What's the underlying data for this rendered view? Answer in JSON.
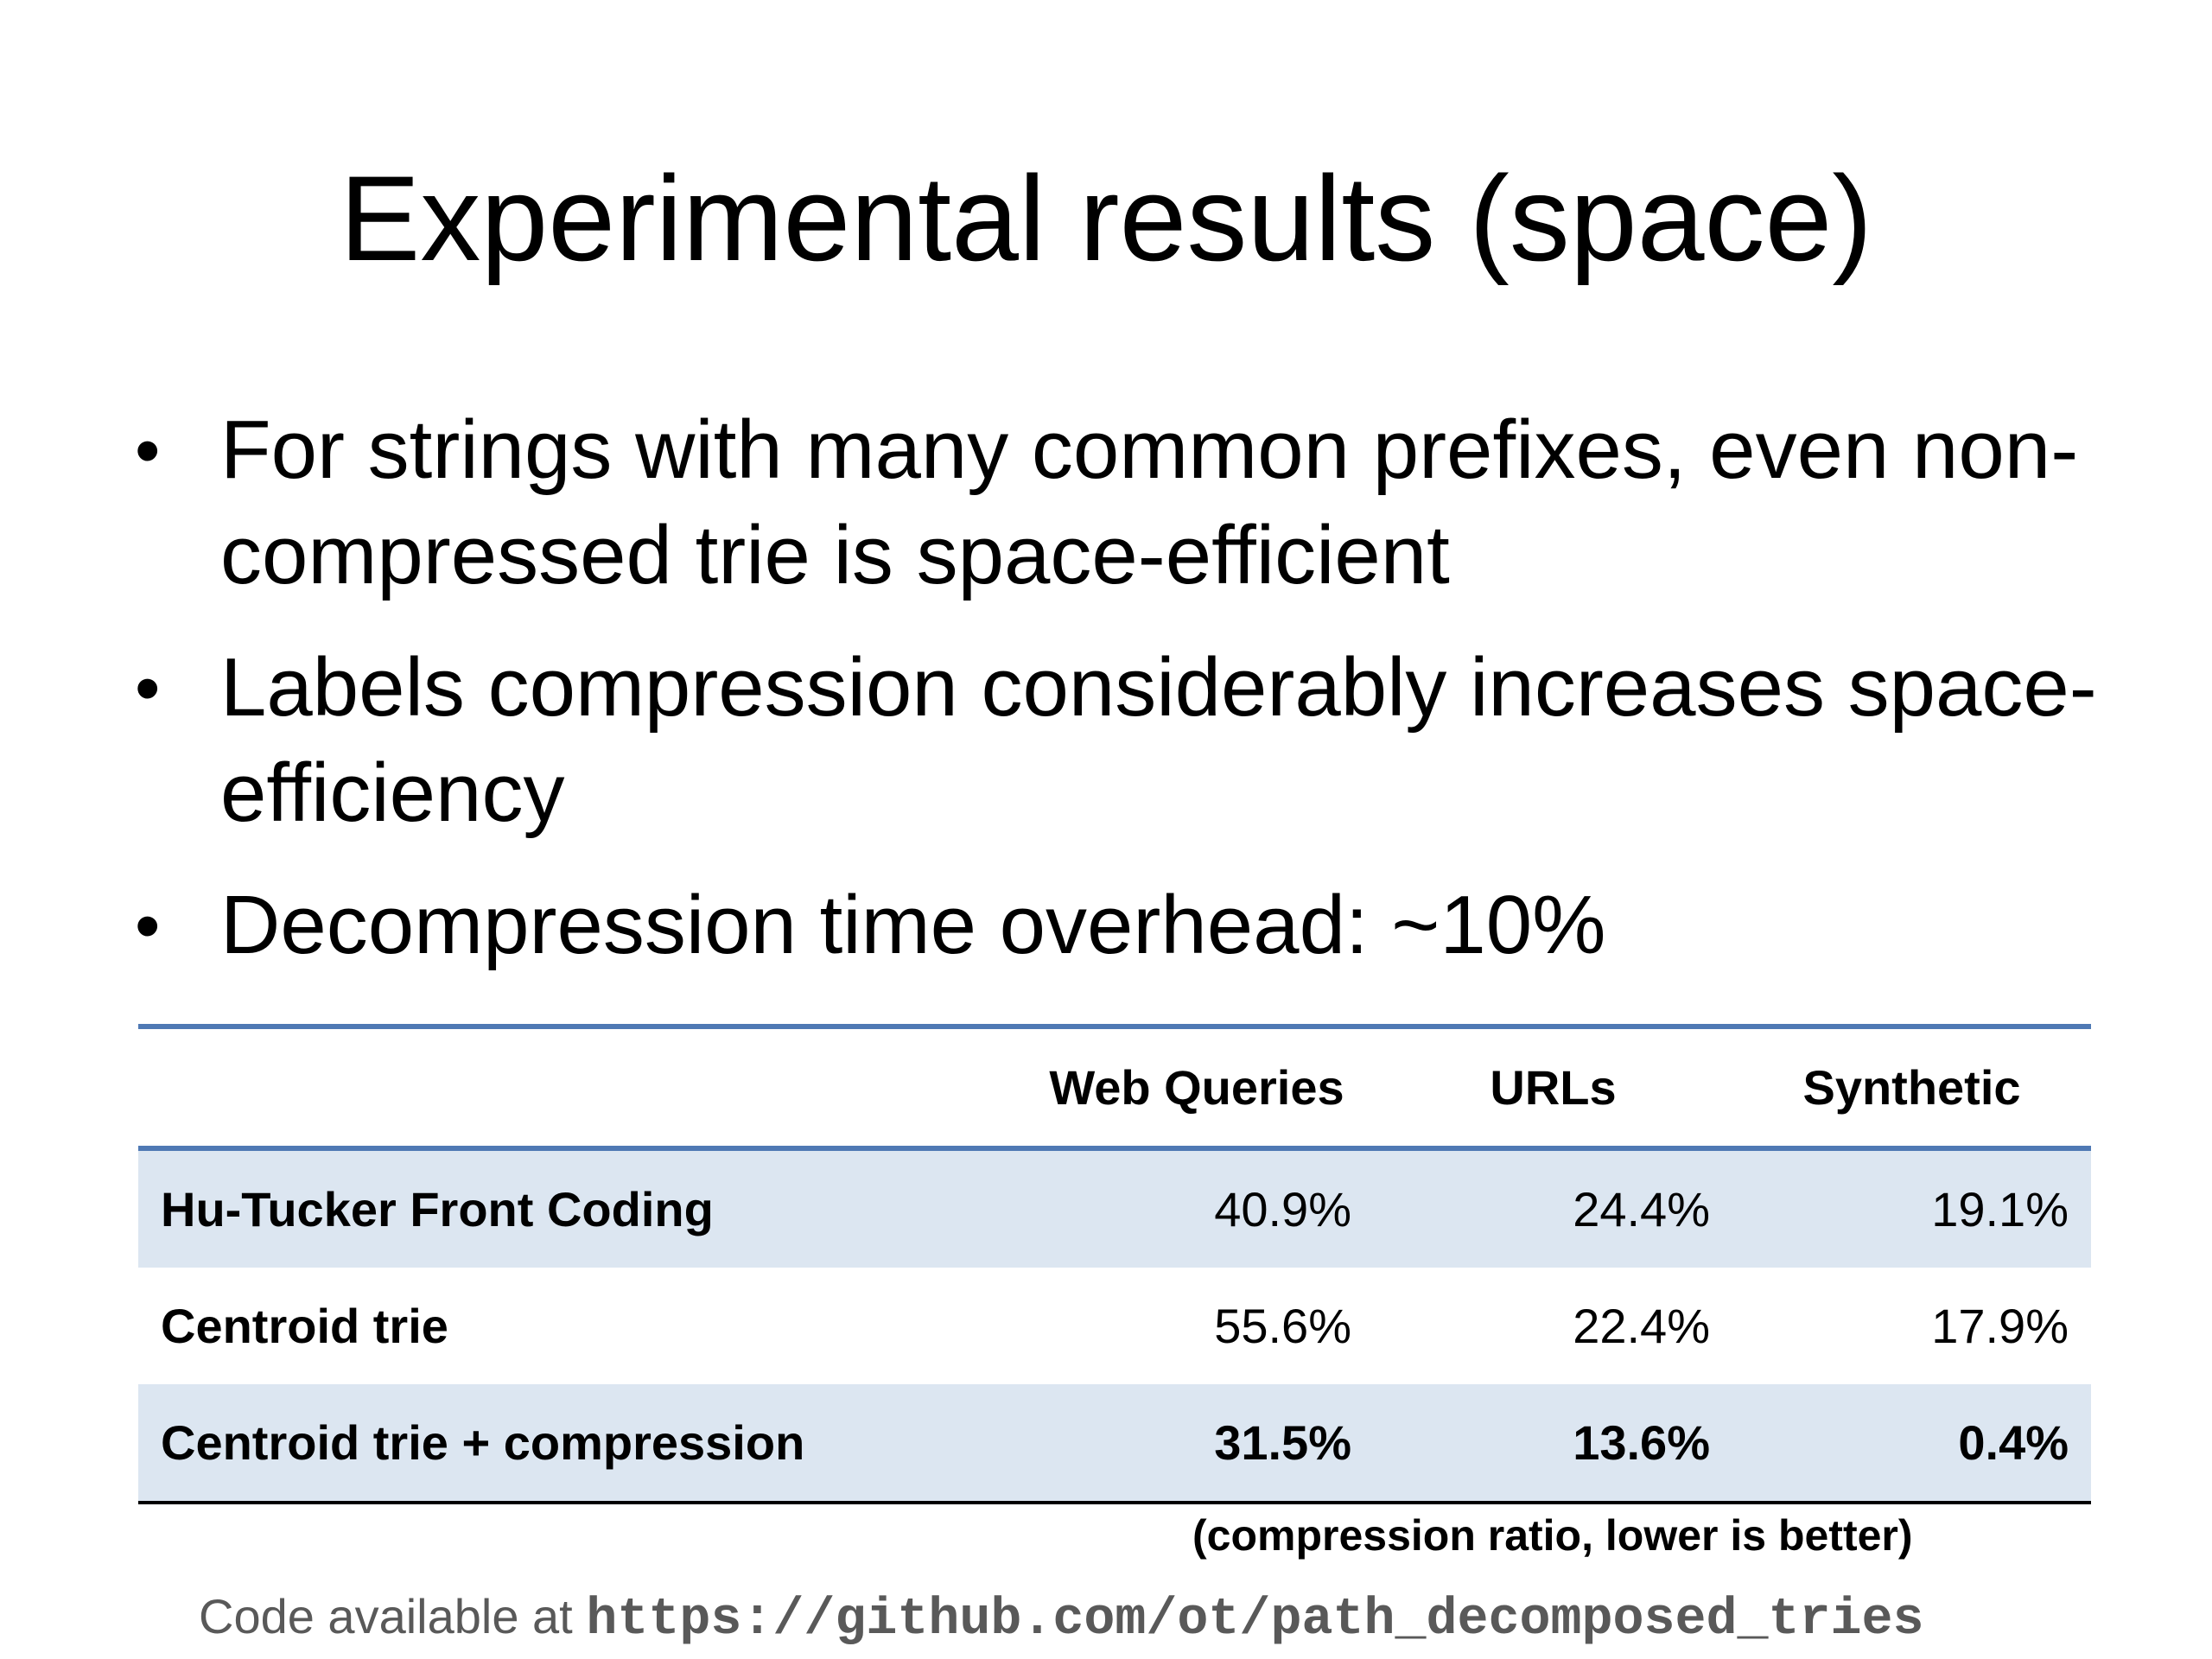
{
  "slide": {
    "title": "Experimental results (space)",
    "bullets": [
      "For strings with many common prefixes, even non-compressed trie is space-efficient",
      "Labels compression considerably increases space-efficiency",
      "Decompression time overhead: ~10%"
    ],
    "bullet_glyph": "•"
  },
  "table": {
    "columns": [
      "",
      "Web Queries",
      "URLs",
      "Synthetic"
    ],
    "rows": [
      {
        "label": "Hu-Tucker Front Coding",
        "values": [
          "40.9%",
          "24.4%",
          "19.1%"
        ]
      },
      {
        "label": "Centroid trie",
        "values": [
          "55.6%",
          "22.4%",
          "17.9%"
        ]
      },
      {
        "label": "Centroid trie + compression",
        "values": [
          "31.5%",
          "13.6%",
          "0.4%"
        ]
      }
    ],
    "caption": "(compression ratio, lower is better)",
    "colors": {
      "header_rule": "#4f79b4",
      "row_shading": "#dce6f1"
    }
  },
  "footer": {
    "prefix": "Code available at",
    "url": "https://github.com/ot/path_decomposed_tries"
  }
}
